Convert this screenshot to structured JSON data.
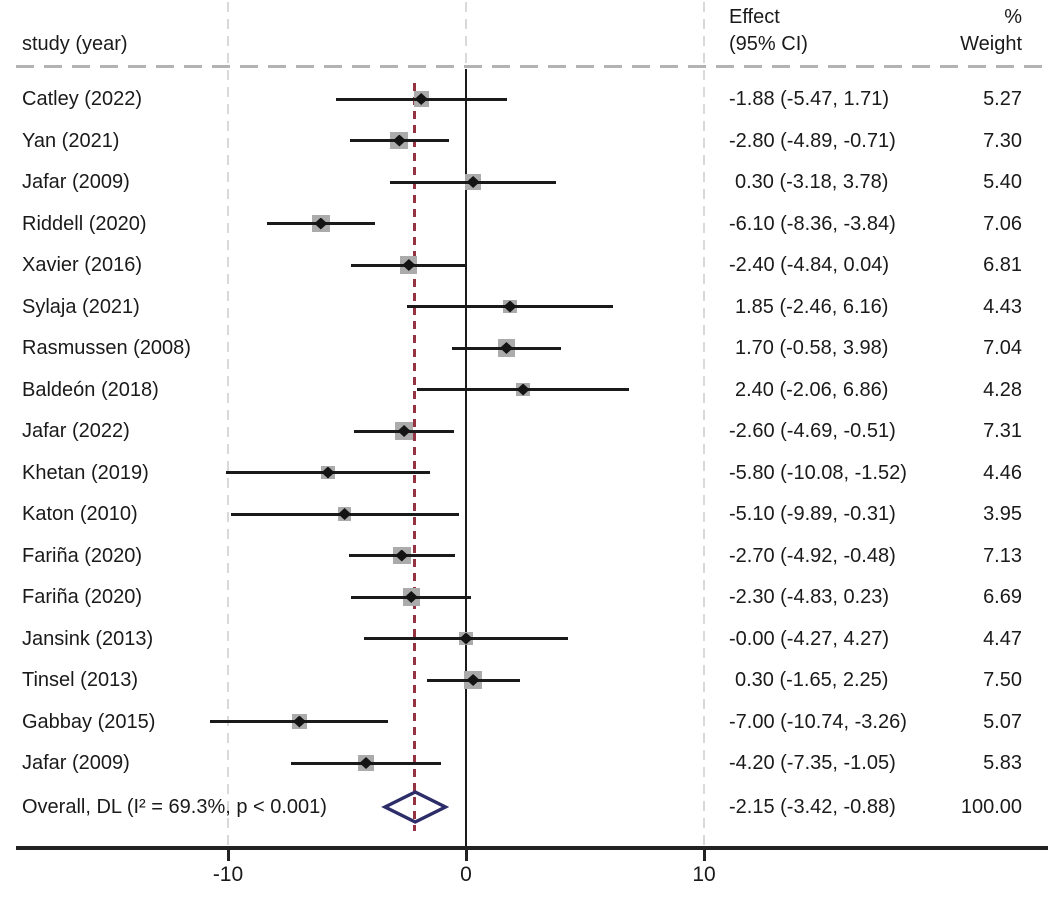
{
  "header": {
    "study_col": "study (year)",
    "effect_col": [
      "Effect",
      "(95% CI)"
    ],
    "weight_col": [
      "%",
      "Weight"
    ]
  },
  "chart_data": {
    "type": "forest_plot",
    "title": "",
    "x_axis": {
      "ticks": [
        -10,
        0,
        10
      ],
      "tick_labels": [
        "-10",
        "0",
        "10"
      ],
      "xlim": [
        -19.6,
        24.5
      ],
      "reference_line": 0,
      "overall_effect_line": -2.15,
      "grid": "dashed-vertical-at-ticks"
    },
    "studies": [
      {
        "name": "Catley (2022)",
        "effect": -1.88,
        "ci_low": -5.47,
        "ci_high": 1.71,
        "effect_label": "-1.88 (-5.47, 1.71)",
        "weight": 5.27,
        "weight_label": "5.27"
      },
      {
        "name": "Yan (2021)",
        "effect": -2.8,
        "ci_low": -4.89,
        "ci_high": -0.71,
        "effect_label": "-2.80 (-4.89, -0.71)",
        "weight": 7.3,
        "weight_label": "7.30"
      },
      {
        "name": "Jafar (2009)",
        "effect": 0.3,
        "ci_low": -3.18,
        "ci_high": 3.78,
        "effect_label": "0.30 (-3.18, 3.78)",
        "weight": 5.4,
        "weight_label": "5.40"
      },
      {
        "name": "Riddell (2020)",
        "effect": -6.1,
        "ci_low": -8.36,
        "ci_high": -3.84,
        "effect_label": "-6.10 (-8.36, -3.84)",
        "weight": 7.06,
        "weight_label": "7.06"
      },
      {
        "name": "Xavier (2016)",
        "effect": -2.4,
        "ci_low": -4.84,
        "ci_high": 0.04,
        "effect_label": "-2.40 (-4.84, 0.04)",
        "weight": 6.81,
        "weight_label": "6.81"
      },
      {
        "name": "Sylaja (2021)",
        "effect": 1.85,
        "ci_low": -2.46,
        "ci_high": 6.16,
        "effect_label": "1.85 (-2.46, 6.16)",
        "weight": 4.43,
        "weight_label": "4.43"
      },
      {
        "name": "Rasmussen (2008)",
        "effect": 1.7,
        "ci_low": -0.58,
        "ci_high": 3.98,
        "effect_label": "1.70 (-0.58, 3.98)",
        "weight": 7.04,
        "weight_label": "7.04"
      },
      {
        "name": "Baldeón (2018)",
        "effect": 2.4,
        "ci_low": -2.06,
        "ci_high": 6.86,
        "effect_label": "2.40 (-2.06, 6.86)",
        "weight": 4.28,
        "weight_label": "4.28"
      },
      {
        "name": "Jafar (2022)",
        "effect": -2.6,
        "ci_low": -4.69,
        "ci_high": -0.51,
        "effect_label": "-2.60 (-4.69, -0.51)",
        "weight": 7.31,
        "weight_label": "7.31"
      },
      {
        "name": "Khetan (2019)",
        "effect": -5.8,
        "ci_low": -10.08,
        "ci_high": -1.52,
        "effect_label": "-5.80 (-10.08, -1.52)",
        "weight": 4.46,
        "weight_label": "4.46"
      },
      {
        "name": "Katon (2010)",
        "effect": -5.1,
        "ci_low": -9.89,
        "ci_high": -0.31,
        "effect_label": "-5.10 (-9.89, -0.31)",
        "weight": 3.95,
        "weight_label": "3.95"
      },
      {
        "name": "Fariña (2020)",
        "effect": -2.7,
        "ci_low": -4.92,
        "ci_high": -0.48,
        "effect_label": "-2.70 (-4.92, -0.48)",
        "weight": 7.13,
        "weight_label": "7.13"
      },
      {
        "name": "Fariña (2020)",
        "effect": -2.3,
        "ci_low": -4.83,
        "ci_high": 0.23,
        "effect_label": "-2.30 (-4.83, 0.23)",
        "weight": 6.69,
        "weight_label": "6.69"
      },
      {
        "name": "Jansink (2013)",
        "effect": -0.0,
        "ci_low": -4.27,
        "ci_high": 4.27,
        "effect_label": "-0.00 (-4.27, 4.27)",
        "weight": 4.47,
        "weight_label": "4.47"
      },
      {
        "name": "Tinsel (2013)",
        "effect": 0.3,
        "ci_low": -1.65,
        "ci_high": 2.25,
        "effect_label": "0.30 (-1.65, 2.25)",
        "weight": 7.5,
        "weight_label": "7.50"
      },
      {
        "name": "Gabbay (2015)",
        "effect": -7.0,
        "ci_low": -10.74,
        "ci_high": -3.26,
        "effect_label": "-7.00 (-10.74, -3.26)",
        "weight": 5.07,
        "weight_label": "5.07"
      },
      {
        "name": "Jafar (2009)",
        "effect": -4.2,
        "ci_low": -7.35,
        "ci_high": -1.05,
        "effect_label": "-4.20 (-7.35, -1.05)",
        "weight": 5.83,
        "weight_label": "5.83"
      }
    ],
    "overall": {
      "name": "Overall, DL (I² = 69.3%, p < 0.001)",
      "effect": -2.15,
      "ci_low": -3.42,
      "ci_high": -0.88,
      "effect_label": "-2.15 (-3.42, -0.88)",
      "weight": 100.0,
      "weight_label": "100.00"
    }
  },
  "colors": {
    "text": "#1a1a1a",
    "ci_line": "#1a1a1a",
    "marker_point": "#141414",
    "marker_box": "#ababab",
    "overall_diamond": "#2d2d69",
    "overall_line": "#943442",
    "gridline": "#d9d9d9",
    "separator": "#b3b3b3",
    "axis": "#222222"
  }
}
